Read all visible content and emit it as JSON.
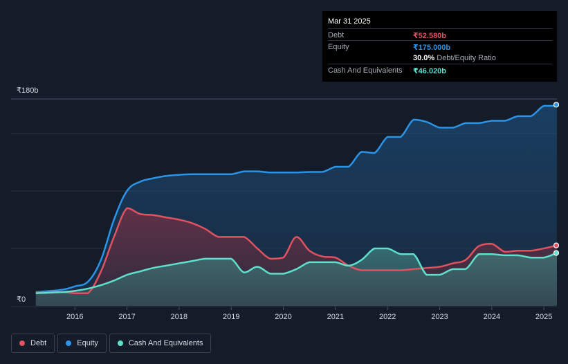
{
  "tooltip": {
    "date": "Mar 31 2025",
    "debt_label": "Debt",
    "debt_value": "₹52.580b",
    "equity_label": "Equity",
    "equity_value": "₹175.000b",
    "ratio_value": "30.0%",
    "ratio_label": "Debt/Equity Ratio",
    "cash_label": "Cash And Equivalents",
    "cash_value": "₹46.020b"
  },
  "colors": {
    "debt": "#e05260",
    "equity": "#2b94e6",
    "cash": "#5ee0cc",
    "background": "#151c29"
  },
  "legend": [
    {
      "label": "Debt",
      "color": "#e05260"
    },
    {
      "label": "Equity",
      "color": "#2b94e6"
    },
    {
      "label": "Cash And Equivalents",
      "color": "#5ee0cc"
    }
  ],
  "chart_data": {
    "type": "area",
    "ylim": [
      0,
      180
    ],
    "xlim": [
      2015.2,
      2025.25
    ],
    "y_ticks": [
      {
        "value": 180,
        "label": "₹180b"
      },
      {
        "value": 0,
        "label": "₹0"
      }
    ],
    "x_ticks": [
      "2016",
      "2017",
      "2018",
      "2019",
      "2020",
      "2021",
      "2022",
      "2023",
      "2024",
      "2025"
    ],
    "grid": true,
    "legend_position": "bottom-left",
    "series": [
      {
        "name": "Equity",
        "points": [
          [
            2015.25,
            12
          ],
          [
            2015.75,
            14
          ],
          [
            2016.0,
            17
          ],
          [
            2016.25,
            21
          ],
          [
            2016.5,
            40
          ],
          [
            2016.75,
            75
          ],
          [
            2017.0,
            100
          ],
          [
            2017.25,
            108
          ],
          [
            2017.5,
            111
          ],
          [
            2017.75,
            113
          ],
          [
            2018.0,
            114
          ],
          [
            2018.25,
            114.5
          ],
          [
            2018.5,
            114.5
          ],
          [
            2018.75,
            114.5
          ],
          [
            2019.0,
            114.5
          ],
          [
            2019.25,
            117
          ],
          [
            2019.5,
            117
          ],
          [
            2019.75,
            116
          ],
          [
            2020.0,
            116
          ],
          [
            2020.25,
            116
          ],
          [
            2020.5,
            116.5
          ],
          [
            2020.75,
            116.5
          ],
          [
            2021.0,
            121
          ],
          [
            2021.25,
            121
          ],
          [
            2021.5,
            134
          ],
          [
            2021.75,
            133
          ],
          [
            2022.0,
            147
          ],
          [
            2022.25,
            147
          ],
          [
            2022.5,
            162
          ],
          [
            2022.75,
            160
          ],
          [
            2023.0,
            155
          ],
          [
            2023.25,
            155
          ],
          [
            2023.5,
            159
          ],
          [
            2023.75,
            159
          ],
          [
            2024.0,
            161
          ],
          [
            2024.25,
            161
          ],
          [
            2024.5,
            165
          ],
          [
            2024.75,
            165
          ],
          [
            2025.0,
            174
          ],
          [
            2025.25,
            174
          ],
          [
            2025.25,
            175
          ]
        ]
      },
      {
        "name": "Debt",
        "points": [
          [
            2015.25,
            12
          ],
          [
            2015.75,
            12
          ],
          [
            2016.0,
            11
          ],
          [
            2016.25,
            11
          ],
          [
            2016.5,
            30
          ],
          [
            2016.75,
            60
          ],
          [
            2017.0,
            85
          ],
          [
            2017.25,
            80
          ],
          [
            2017.5,
            79
          ],
          [
            2017.75,
            77
          ],
          [
            2018.0,
            75
          ],
          [
            2018.25,
            72
          ],
          [
            2018.5,
            67
          ],
          [
            2018.75,
            60
          ],
          [
            2019.0,
            60
          ],
          [
            2019.25,
            60
          ],
          [
            2019.5,
            50
          ],
          [
            2019.75,
            41
          ],
          [
            2020.0,
            42
          ],
          [
            2020.25,
            60
          ],
          [
            2020.5,
            48
          ],
          [
            2020.75,
            43
          ],
          [
            2021.0,
            42
          ],
          [
            2021.25,
            35
          ],
          [
            2021.5,
            31
          ],
          [
            2021.75,
            31
          ],
          [
            2022.0,
            31
          ],
          [
            2022.25,
            31
          ],
          [
            2022.5,
            32
          ],
          [
            2022.75,
            33
          ],
          [
            2023.0,
            34
          ],
          [
            2023.25,
            37
          ],
          [
            2023.5,
            40
          ],
          [
            2023.75,
            52
          ],
          [
            2024.0,
            54
          ],
          [
            2024.25,
            47
          ],
          [
            2024.5,
            48
          ],
          [
            2024.75,
            48
          ],
          [
            2025.0,
            50
          ],
          [
            2025.25,
            52.58
          ]
        ]
      },
      {
        "name": "Cash And Equivalents",
        "points": [
          [
            2015.25,
            11
          ],
          [
            2015.75,
            12
          ],
          [
            2016.0,
            13
          ],
          [
            2016.25,
            15
          ],
          [
            2016.5,
            18
          ],
          [
            2016.75,
            22
          ],
          [
            2017.0,
            27
          ],
          [
            2017.25,
            30
          ],
          [
            2017.5,
            33
          ],
          [
            2017.75,
            35
          ],
          [
            2018.0,
            37
          ],
          [
            2018.25,
            39
          ],
          [
            2018.5,
            41
          ],
          [
            2018.75,
            41
          ],
          [
            2019.0,
            41
          ],
          [
            2019.25,
            29
          ],
          [
            2019.5,
            34
          ],
          [
            2019.75,
            28
          ],
          [
            2020.0,
            28
          ],
          [
            2020.25,
            32
          ],
          [
            2020.5,
            38
          ],
          [
            2020.75,
            38
          ],
          [
            2021.0,
            38
          ],
          [
            2021.25,
            35
          ],
          [
            2021.5,
            40
          ],
          [
            2021.75,
            50
          ],
          [
            2022.0,
            50
          ],
          [
            2022.25,
            45
          ],
          [
            2022.5,
            45
          ],
          [
            2022.75,
            27
          ],
          [
            2023.0,
            27
          ],
          [
            2023.25,
            32
          ],
          [
            2023.5,
            32
          ],
          [
            2023.75,
            45
          ],
          [
            2024.0,
            45
          ],
          [
            2024.25,
            44
          ],
          [
            2024.5,
            44
          ],
          [
            2024.75,
            42
          ],
          [
            2025.0,
            42
          ],
          [
            2025.25,
            46.02
          ]
        ]
      }
    ]
  }
}
